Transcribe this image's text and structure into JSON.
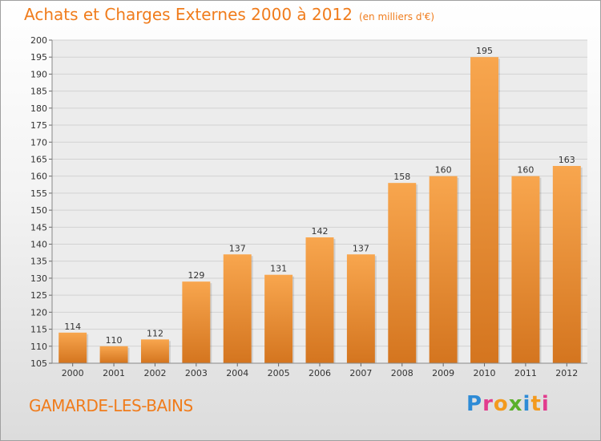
{
  "header": {
    "title": "Achats et Charges Externes 2000 à 2012",
    "subtitle": "(en milliers d'€)"
  },
  "footer": {
    "town": "GAMARDE-LES-BAINS",
    "logo_letters": [
      "P",
      "r",
      "o",
      "x",
      "i",
      "t",
      "i"
    ],
    "logo_colors": [
      "#2e8bd6",
      "#e23c8e",
      "#f39a1e",
      "#5ab02a",
      "#2e8bd6",
      "#f39a1e",
      "#e23c8e"
    ]
  },
  "chart_data": {
    "type": "bar",
    "title": "Achats et Charges Externes 2000 à 2012",
    "subtitle": "(en milliers d'€)",
    "xlabel": "",
    "ylabel": "",
    "categories": [
      "2000",
      "2001",
      "2002",
      "2003",
      "2004",
      "2005",
      "2006",
      "2007",
      "2008",
      "2009",
      "2010",
      "2011",
      "2012"
    ],
    "values": [
      114,
      110,
      112,
      129,
      137,
      131,
      142,
      137,
      158,
      160,
      195,
      160,
      163
    ],
    "ylim": [
      105,
      200
    ],
    "yticks": [
      105,
      110,
      115,
      120,
      125,
      130,
      135,
      140,
      145,
      150,
      155,
      160,
      165,
      170,
      175,
      180,
      185,
      190,
      195,
      200
    ],
    "grid": true,
    "bar_color_top": "#f8a64e",
    "bar_color_bottom": "#d4751f"
  }
}
